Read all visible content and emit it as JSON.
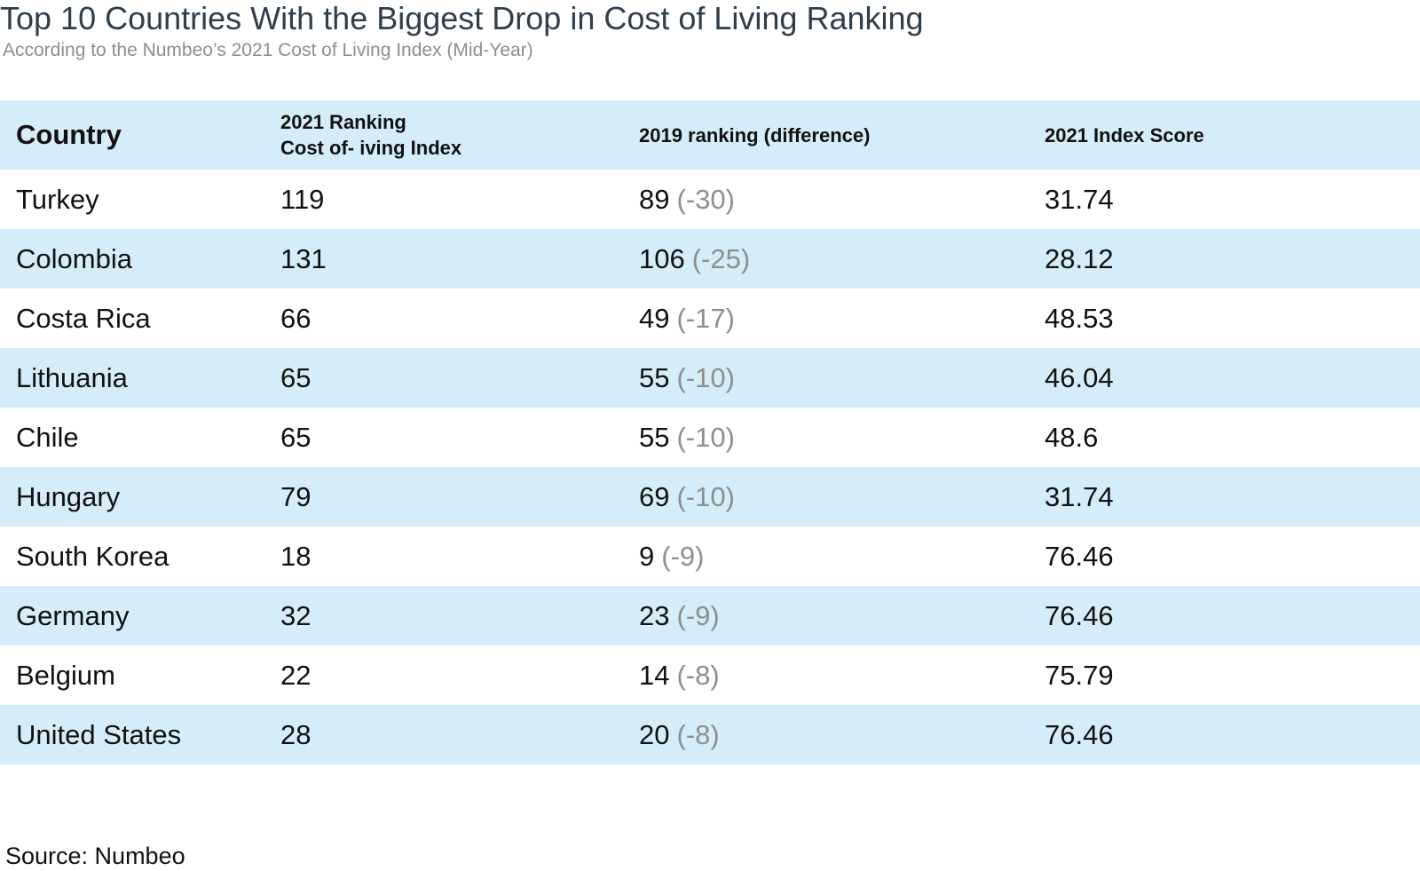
{
  "title": "Top 10 Countries With the Biggest Drop in Cost of Living Ranking",
  "subtitle": "According to the Numbeo’s 2021 Cost of Living Index (Mid-Year)",
  "source": "Source: Numbeo",
  "colors": {
    "header_bg": "#d4edf8",
    "stripe_bg": "#d4edf8",
    "title": "#2f3e4c",
    "subtitle": "#8a8f94",
    "diff": "#8e8e8e"
  },
  "chart_data": {
    "type": "table",
    "title": "Top 10 Countries With the Biggest Drop in Cost of Living Ranking",
    "subtitle": "According to the Numbeo’s 2021 Cost of Living Index (Mid-Year)",
    "columns": {
      "country": "Country",
      "rank2021_line1": "2021 Ranking",
      "rank2021_line2": "Cost of- iving Index",
      "rank2019": "2019 ranking (difference)",
      "score": "2021 Index Score"
    },
    "rows": [
      {
        "country": "Turkey",
        "rank2021": "119",
        "rank2019": "89",
        "diff": "(-30)",
        "score": "31.74"
      },
      {
        "country": "Colombia",
        "rank2021": "131",
        "rank2019": "106",
        "diff": "(-25)",
        "score": "28.12"
      },
      {
        "country": "Costa Rica",
        "rank2021": "66",
        "rank2019": "49",
        "diff": "(-17)",
        "score": "48.53"
      },
      {
        "country": "Lithuania",
        "rank2021": "65",
        "rank2019": "55",
        "diff": "(-10)",
        "score": "46.04"
      },
      {
        "country": "Chile",
        "rank2021": "65",
        "rank2019": "55",
        "diff": "(-10)",
        "score": "48.6"
      },
      {
        "country": "Hungary",
        "rank2021": "79",
        "rank2019": "69",
        "diff": "(-10)",
        "score": "31.74"
      },
      {
        "country": "South Korea",
        "rank2021": "18",
        "rank2019": "9",
        "diff": "(-9)",
        "score": "76.46"
      },
      {
        "country": "Germany",
        "rank2021": "32",
        "rank2019": "23",
        "diff": "(-9)",
        "score": "76.46"
      },
      {
        "country": "Belgium",
        "rank2021": "22",
        "rank2019": "14",
        "diff": "(-8)",
        "score": "75.79"
      },
      {
        "country": "United States",
        "rank2021": "28",
        "rank2019": "20",
        "diff": "(-8)",
        "score": "76.46"
      }
    ]
  }
}
